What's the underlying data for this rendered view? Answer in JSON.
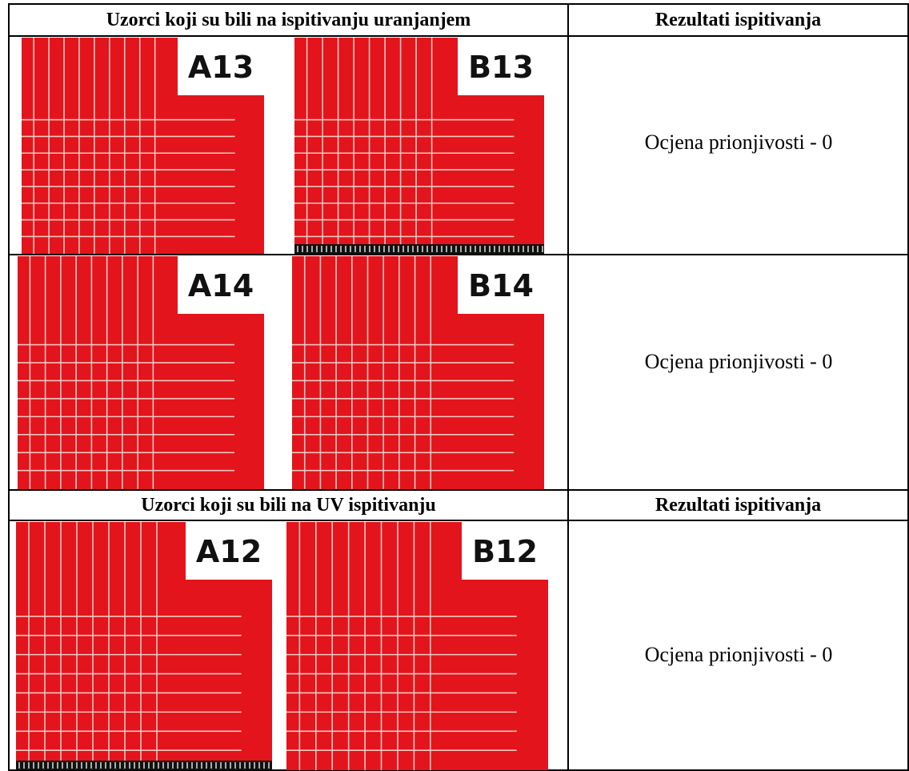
{
  "table": {
    "sections": [
      {
        "header": [
          "Uzorci koji su bili na ispitivanju uranjanjem",
          "Rezultati ispitivanja"
        ],
        "rows": [
          {
            "samples": [
              "A13",
              "B13"
            ],
            "result": "Ocjena prionjivosti - 0"
          },
          {
            "samples": [
              "A14",
              "B14"
            ],
            "result": "Ocjena prionjivosti - 0"
          }
        ]
      },
      {
        "header": [
          "Uzorci koji su bili na UV ispitivanju",
          "Rezultati ispitivanja"
        ],
        "rows": [
          {
            "samples": [
              "A12",
              "B12"
            ],
            "result": "Ocjena prionjivosti - 0"
          }
        ]
      }
    ]
  }
}
